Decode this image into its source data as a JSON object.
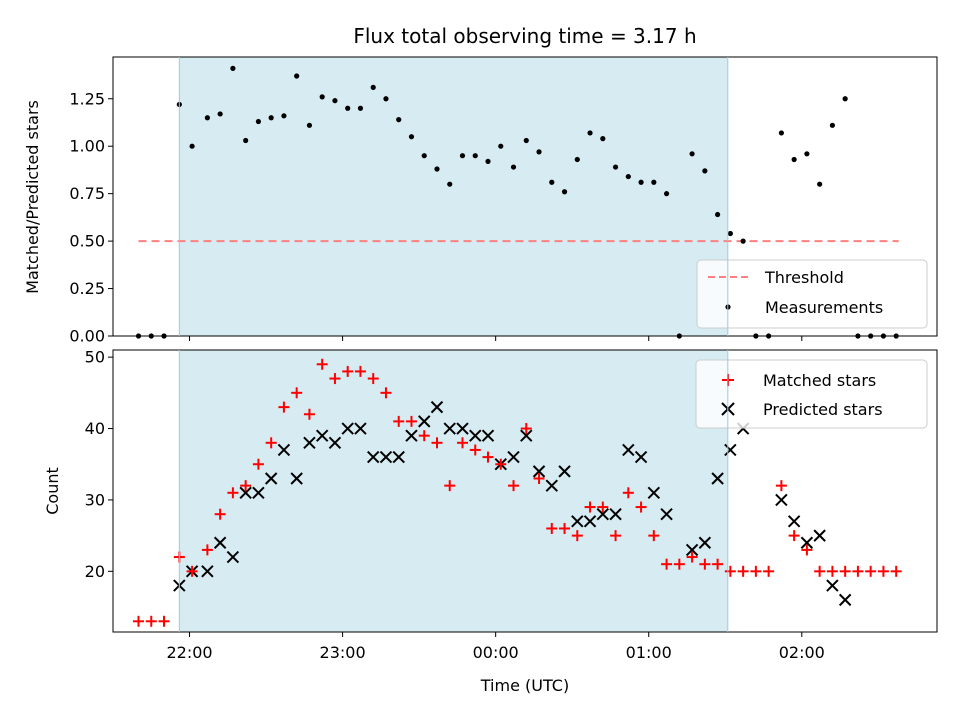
{
  "chart_data": [
    {
      "type": "scatter",
      "title": "Flux total observing time = 3.17 h",
      "xlabel": "",
      "ylabel": "Matched/Predicted stars",
      "ylim": [
        0,
        1.47
      ],
      "yticks": [
        "0.00",
        "0.25",
        "0.50",
        "0.75",
        "1.00",
        "1.25"
      ],
      "ytick_values": [
        0,
        0.25,
        0.5,
        0.75,
        1.0,
        1.25
      ],
      "xticks_labeled": false,
      "threshold": {
        "name": "Threshold",
        "value": 0.5,
        "x_start": "21:40",
        "x_end": "02:38",
        "color": "#ff8080"
      },
      "observing_window": {
        "start": "21:56",
        "end": "01:31",
        "color": "#add8e6"
      },
      "legend": {
        "position": "lower right",
        "entries": [
          "Threshold",
          "Measurements"
        ]
      },
      "series": [
        {
          "name": "Measurements",
          "marker": "dot",
          "color": "#000000",
          "points": [
            [
              "21:40",
              0
            ],
            [
              "21:45",
              0
            ],
            [
              "21:50",
              0
            ],
            [
              "21:56",
              1.22
            ],
            [
              "22:01",
              1.0
            ],
            [
              "22:07",
              1.15
            ],
            [
              "22:12",
              1.17
            ],
            [
              "22:17",
              1.41
            ],
            [
              "22:22",
              1.03
            ],
            [
              "22:27",
              1.13
            ],
            [
              "22:32",
              1.15
            ],
            [
              "22:37",
              1.16
            ],
            [
              "22:42",
              1.37
            ],
            [
              "22:47",
              1.11
            ],
            [
              "22:52",
              1.26
            ],
            [
              "22:57",
              1.24
            ],
            [
              "23:02",
              1.2
            ],
            [
              "23:07",
              1.2
            ],
            [
              "23:12",
              1.31
            ],
            [
              "23:17",
              1.25
            ],
            [
              "23:22",
              1.14
            ],
            [
              "23:27",
              1.05
            ],
            [
              "23:32",
              0.95
            ],
            [
              "23:37",
              0.88
            ],
            [
              "23:42",
              0.8
            ],
            [
              "23:47",
              0.95
            ],
            [
              "23:52",
              0.95
            ],
            [
              "23:57",
              0.92
            ],
            [
              "00:02",
              1.0
            ],
            [
              "00:07",
              0.89
            ],
            [
              "00:12",
              1.03
            ],
            [
              "00:17",
              0.97
            ],
            [
              "00:22",
              0.81
            ],
            [
              "00:27",
              0.76
            ],
            [
              "00:32",
              0.93
            ],
            [
              "00:37",
              1.07
            ],
            [
              "00:42",
              1.04
            ],
            [
              "00:47",
              0.89
            ],
            [
              "00:52",
              0.84
            ],
            [
              "00:57",
              0.81
            ],
            [
              "01:02",
              0.81
            ],
            [
              "01:07",
              0.75
            ],
            [
              "01:12",
              0
            ],
            [
              "01:17",
              0.96
            ],
            [
              "01:22",
              0.87
            ],
            [
              "01:27",
              0.64
            ],
            [
              "01:32",
              0.54
            ],
            [
              "01:37",
              0.5
            ],
            [
              "01:42",
              0
            ],
            [
              "01:47",
              0
            ],
            [
              "01:52",
              1.07
            ],
            [
              "01:57",
              0.93
            ],
            [
              "02:02",
              0.96
            ],
            [
              "02:07",
              0.8
            ],
            [
              "02:12",
              1.11
            ],
            [
              "02:17",
              1.25
            ],
            [
              "02:22",
              0
            ],
            [
              "02:27",
              0
            ],
            [
              "02:32",
              0
            ],
            [
              "02:37",
              0
            ]
          ]
        }
      ]
    },
    {
      "type": "scatter",
      "title": "",
      "xlabel": "Time (UTC)",
      "ylabel": "Count",
      "ylim": [
        11.5,
        51
      ],
      "yticks": [
        "20",
        "30",
        "40",
        "50"
      ],
      "ytick_values": [
        20,
        30,
        40,
        50
      ],
      "xticks": [
        "22:00",
        "23:00",
        "00:00",
        "01:00",
        "02:00"
      ],
      "observing_window": {
        "start": "21:56",
        "end": "01:31",
        "color": "#add8e6"
      },
      "legend": {
        "position": "upper right",
        "entries": [
          "Matched stars",
          "Predicted stars"
        ]
      },
      "series": [
        {
          "name": "Matched stars",
          "marker": "plus",
          "color": "#ff0000",
          "points": [
            [
              "21:40",
              13
            ],
            [
              "21:45",
              13
            ],
            [
              "21:50",
              13
            ],
            [
              "21:56",
              22
            ],
            [
              "22:01",
              20
            ],
            [
              "22:07",
              23
            ],
            [
              "22:12",
              28
            ],
            [
              "22:17",
              31
            ],
            [
              "22:22",
              32
            ],
            [
              "22:27",
              35
            ],
            [
              "22:32",
              38
            ],
            [
              "22:37",
              43
            ],
            [
              "22:42",
              45
            ],
            [
              "22:47",
              42
            ],
            [
              "22:52",
              49
            ],
            [
              "22:57",
              47
            ],
            [
              "23:02",
              48
            ],
            [
              "23:07",
              48
            ],
            [
              "23:12",
              47
            ],
            [
              "23:17",
              45
            ],
            [
              "23:22",
              41
            ],
            [
              "23:27",
              41
            ],
            [
              "23:32",
              39
            ],
            [
              "23:37",
              38
            ],
            [
              "23:42",
              32
            ],
            [
              "23:47",
              38
            ],
            [
              "23:52",
              37
            ],
            [
              "23:57",
              36
            ],
            [
              "00:02",
              35
            ],
            [
              "00:07",
              32
            ],
            [
              "00:12",
              40
            ],
            [
              "00:17",
              33
            ],
            [
              "00:22",
              26
            ],
            [
              "00:27",
              26
            ],
            [
              "00:32",
              25
            ],
            [
              "00:37",
              29
            ],
            [
              "00:42",
              29
            ],
            [
              "00:47",
              25
            ],
            [
              "00:52",
              31
            ],
            [
              "00:57",
              29
            ],
            [
              "01:02",
              25
            ],
            [
              "01:07",
              21
            ],
            [
              "01:12",
              21
            ],
            [
              "01:17",
              22
            ],
            [
              "01:22",
              21
            ],
            [
              "01:27",
              21
            ],
            [
              "01:32",
              20
            ],
            [
              "01:37",
              20
            ],
            [
              "01:42",
              20
            ],
            [
              "01:47",
              20
            ],
            [
              "01:52",
              32
            ],
            [
              "01:57",
              25
            ],
            [
              "02:02",
              23
            ],
            [
              "02:07",
              20
            ],
            [
              "02:12",
              20
            ],
            [
              "02:17",
              20
            ],
            [
              "02:22",
              20
            ],
            [
              "02:27",
              20
            ],
            [
              "02:32",
              20
            ],
            [
              "02:37",
              20
            ]
          ]
        },
        {
          "name": "Predicted stars",
          "marker": "x",
          "color": "#000000",
          "points": [
            [
              "21:56",
              18
            ],
            [
              "22:01",
              20
            ],
            [
              "22:07",
              20
            ],
            [
              "22:12",
              24
            ],
            [
              "22:17",
              22
            ],
            [
              "22:22",
              31
            ],
            [
              "22:27",
              31
            ],
            [
              "22:32",
              33
            ],
            [
              "22:37",
              37
            ],
            [
              "22:42",
              33
            ],
            [
              "22:47",
              38
            ],
            [
              "22:52",
              39
            ],
            [
              "22:57",
              38
            ],
            [
              "23:02",
              40
            ],
            [
              "23:07",
              40
            ],
            [
              "23:12",
              36
            ],
            [
              "23:17",
              36
            ],
            [
              "23:22",
              36
            ],
            [
              "23:27",
              39
            ],
            [
              "23:32",
              41
            ],
            [
              "23:37",
              43
            ],
            [
              "23:42",
              40
            ],
            [
              "23:47",
              40
            ],
            [
              "23:52",
              39
            ],
            [
              "23:57",
              39
            ],
            [
              "00:02",
              35
            ],
            [
              "00:07",
              36
            ],
            [
              "00:12",
              39
            ],
            [
              "00:17",
              34
            ],
            [
              "00:22",
              32
            ],
            [
              "00:27",
              34
            ],
            [
              "00:32",
              27
            ],
            [
              "00:37",
              27
            ],
            [
              "00:42",
              28
            ],
            [
              "00:47",
              28
            ],
            [
              "00:52",
              37
            ],
            [
              "00:57",
              36
            ],
            [
              "01:02",
              31
            ],
            [
              "01:07",
              28
            ],
            [
              "01:17",
              23
            ],
            [
              "01:22",
              24
            ],
            [
              "01:27",
              33
            ],
            [
              "01:32",
              37
            ],
            [
              "01:37",
              40
            ],
            [
              "01:52",
              30
            ],
            [
              "01:57",
              27
            ],
            [
              "02:02",
              24
            ],
            [
              "02:07",
              25
            ],
            [
              "02:12",
              18
            ],
            [
              "02:17",
              16
            ]
          ]
        }
      ]
    }
  ]
}
